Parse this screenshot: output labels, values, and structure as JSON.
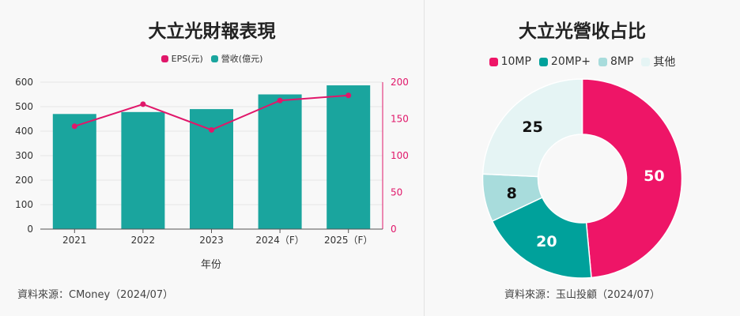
{
  "colors": {
    "teal": "#1aa59e",
    "pink": "#e0176a",
    "pie_10mp": "#ee1567",
    "pie_20mp": "#00a19b",
    "pie_8mp": "#a8dcdc",
    "pie_other": "#e5f4f4"
  },
  "left_panel": {
    "title": "大立光財報表現",
    "source": "資料來源：CMoney（2024/07）"
  },
  "right_panel": {
    "title": "大立光營收占比",
    "source": "資料來源：玉山投顧（2024/07）"
  },
  "chart_data": [
    {
      "type": "bar",
      "title": "大立光財報表現",
      "xlabel": "年份",
      "ylabel": "",
      "y2label": "",
      "categories": [
        "2021",
        "2022",
        "2023",
        "2024（F）",
        "2025（F）"
      ],
      "ylim": [
        0,
        600
      ],
      "y_ticks": [
        0,
        100,
        200,
        300,
        400,
        500,
        600
      ],
      "y2lim": [
        0,
        200
      ],
      "y2_ticks": [
        0,
        50,
        100,
        150,
        200
      ],
      "grid": true,
      "legend_position": "top-center",
      "series": [
        {
          "name": "EPS(元)",
          "type": "line",
          "axis": "right",
          "values": [
            140,
            170,
            135,
            175,
            182
          ]
        },
        {
          "name": "營收(億元)",
          "type": "bar",
          "axis": "left",
          "values": [
            470,
            478,
            490,
            550,
            587
          ]
        }
      ]
    },
    {
      "type": "pie",
      "title": "大立光營收占比",
      "donut": true,
      "legend_position": "top-center",
      "slices": [
        {
          "label": "10MP",
          "value": 50
        },
        {
          "label": "20MP+",
          "value": 20
        },
        {
          "label": "8MP",
          "value": 8
        },
        {
          "label": "其他",
          "value": 25
        }
      ]
    }
  ]
}
